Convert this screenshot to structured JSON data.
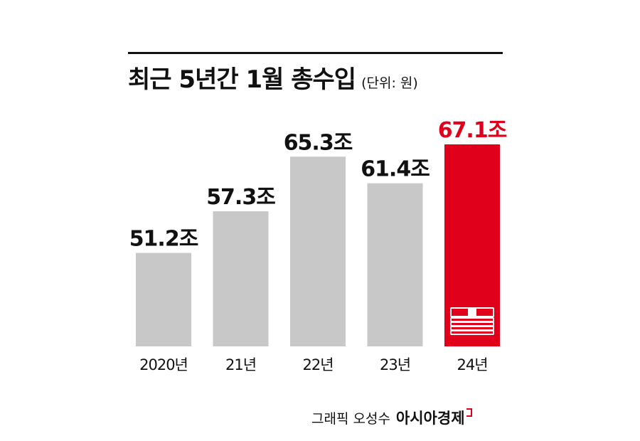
{
  "header": {
    "title": "최근 5년간 1월 총수입",
    "unit": "(단위: 원)"
  },
  "credit": {
    "author": "그래픽 오성수",
    "brand": "아시아경제"
  },
  "colors": {
    "bar": "#c8c8c8",
    "highlight": "#e0001b",
    "text": "#111111"
  },
  "icons": [
    "money-stack-icon"
  ],
  "chart_data": {
    "type": "bar",
    "title": "최근 5년간 1월 총수입",
    "categories": [
      "2020년",
      "21년",
      "22년",
      "23년",
      "24년"
    ],
    "values": [
      51.2,
      57.3,
      65.3,
      61.4,
      67.1
    ],
    "value_labels": [
      "51.2조",
      "57.3조",
      "65.3조",
      "61.4조",
      "67.1조"
    ],
    "highlight_index": 4,
    "ylim": [
      37.5,
      67.1
    ],
    "grid": false,
    "legend": "none"
  }
}
